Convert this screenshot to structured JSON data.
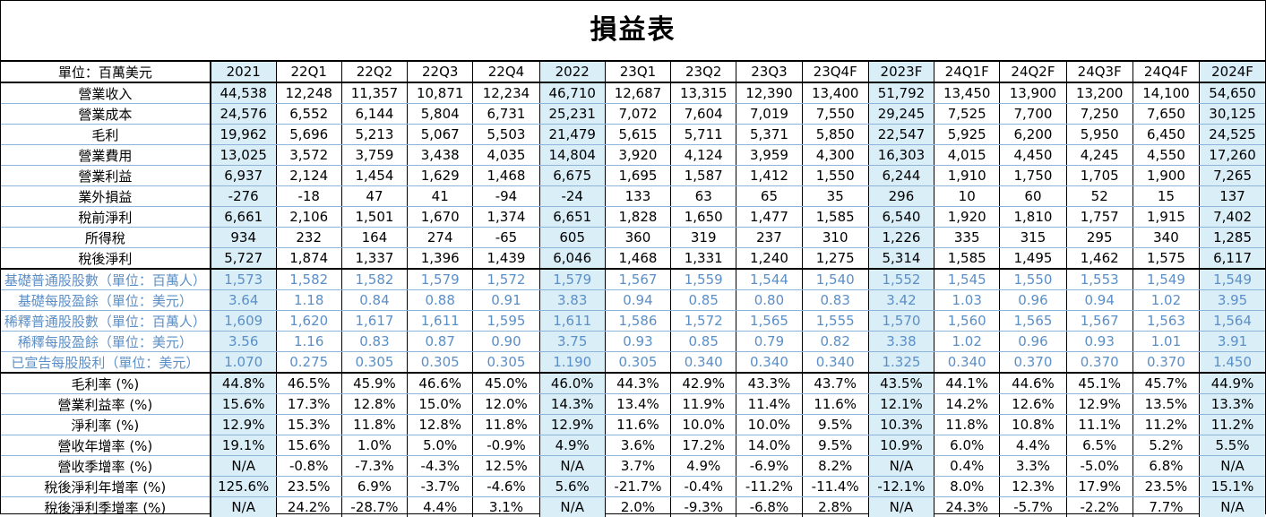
{
  "title": "損益表",
  "unit_label": "單位：百萬美元",
  "columns": [
    "2021",
    "22Q1",
    "22Q2",
    "22Q3",
    "22Q4",
    "2022",
    "23Q1",
    "23Q2",
    "23Q3",
    "23Q4F",
    "2023F",
    "24Q1F",
    "24Q2F",
    "24Q3F",
    "24Q4F",
    "2024F"
  ],
  "annual_columns": [
    0,
    5,
    10,
    15
  ],
  "rows": [
    {
      "label": "營業收入",
      "style": "normal",
      "values": [
        "44,538",
        "12,248",
        "11,357",
        "10,871",
        "12,234",
        "46,710",
        "12,687",
        "13,315",
        "12,390",
        "13,400",
        "51,792",
        "13,450",
        "13,900",
        "13,200",
        "14,100",
        "54,650"
      ]
    },
    {
      "label": "營業成本",
      "style": "normal",
      "values": [
        "24,576",
        "6,552",
        "6,144",
        "5,804",
        "6,731",
        "25,231",
        "7,072",
        "7,604",
        "7,019",
        "7,550",
        "29,245",
        "7,525",
        "7,700",
        "7,250",
        "7,650",
        "30,125"
      ]
    },
    {
      "label": "毛利",
      "style": "normal",
      "values": [
        "19,962",
        "5,696",
        "5,213",
        "5,067",
        "5,503",
        "21,479",
        "5,615",
        "5,711",
        "5,371",
        "5,850",
        "22,547",
        "5,925",
        "6,200",
        "5,950",
        "6,450",
        "24,525"
      ]
    },
    {
      "label": "營業費用",
      "style": "normal",
      "values": [
        "13,025",
        "3,572",
        "3,759",
        "3,438",
        "4,035",
        "14,804",
        "3,920",
        "4,124",
        "3,959",
        "4,300",
        "16,303",
        "4,015",
        "4,450",
        "4,245",
        "4,550",
        "17,260"
      ]
    },
    {
      "label": "營業利益",
      "style": "normal",
      "values": [
        "6,937",
        "2,124",
        "1,454",
        "1,629",
        "1,468",
        "6,675",
        "1,695",
        "1,587",
        "1,412",
        "1,550",
        "6,244",
        "1,910",
        "1,750",
        "1,705",
        "1,900",
        "7,265"
      ]
    },
    {
      "label": "業外損益",
      "style": "normal",
      "values": [
        "-276",
        "-18",
        "47",
        "41",
        "-94",
        "-24",
        "133",
        "63",
        "65",
        "35",
        "296",
        "10",
        "60",
        "52",
        "15",
        "137"
      ]
    },
    {
      "label": "稅前淨利",
      "style": "normal",
      "values": [
        "6,661",
        "2,106",
        "1,501",
        "1,670",
        "1,374",
        "6,651",
        "1,828",
        "1,650",
        "1,477",
        "1,585",
        "6,540",
        "1,920",
        "1,810",
        "1,757",
        "1,915",
        "7,402"
      ]
    },
    {
      "label": "所得稅",
      "style": "normal",
      "values": [
        "934",
        "232",
        "164",
        "274",
        "-65",
        "605",
        "360",
        "319",
        "237",
        "310",
        "1,226",
        "335",
        "315",
        "295",
        "340",
        "1,285"
      ]
    },
    {
      "label": "稅後淨利",
      "style": "normal",
      "values": [
        "5,727",
        "1,874",
        "1,337",
        "1,396",
        "1,439",
        "6,046",
        "1,468",
        "1,331",
        "1,240",
        "1,275",
        "5,314",
        "1,585",
        "1,495",
        "1,462",
        "1,575",
        "6,117"
      ]
    },
    {
      "label": "基礎普通股股數（單位：百萬人）",
      "style": "share",
      "values": [
        "1,573",
        "1,582",
        "1,582",
        "1,579",
        "1,572",
        "1,579",
        "1,567",
        "1,559",
        "1,544",
        "1,540",
        "1,552",
        "1,545",
        "1,550",
        "1,553",
        "1,549",
        "1,549"
      ]
    },
    {
      "label": "基礎每股盈餘（單位：美元）",
      "style": "share",
      "values": [
        "3.64",
        "1.18",
        "0.84",
        "0.88",
        "0.91",
        "3.83",
        "0.94",
        "0.85",
        "0.80",
        "0.83",
        "3.42",
        "1.03",
        "0.96",
        "0.94",
        "1.02",
        "3.95"
      ]
    },
    {
      "label": "稀釋普通股股數（單位：百萬人）",
      "style": "share",
      "values": [
        "1,609",
        "1,620",
        "1,617",
        "1,611",
        "1,595",
        "1,611",
        "1,586",
        "1,572",
        "1,565",
        "1,555",
        "1,570",
        "1,560",
        "1,565",
        "1,567",
        "1,563",
        "1,564"
      ]
    },
    {
      "label": "稀釋每股盈餘（單位：美元）",
      "style": "share",
      "values": [
        "3.56",
        "1.16",
        "0.83",
        "0.87",
        "0.90",
        "3.75",
        "0.93",
        "0.85",
        "0.79",
        "0.82",
        "3.38",
        "1.02",
        "0.96",
        "0.93",
        "1.01",
        "3.91"
      ]
    },
    {
      "label": "已宣告每股股利（單位：美元）",
      "style": "share",
      "values": [
        "1.070",
        "0.275",
        "0.305",
        "0.305",
        "0.305",
        "1.190",
        "0.305",
        "0.340",
        "0.340",
        "0.340",
        "1.325",
        "0.340",
        "0.370",
        "0.370",
        "0.370",
        "1.450"
      ]
    },
    {
      "label": "毛利率 (%)",
      "style": "normal",
      "values": [
        "44.8%",
        "46.5%",
        "45.9%",
        "46.6%",
        "45.0%",
        "46.0%",
        "44.3%",
        "42.9%",
        "43.3%",
        "43.7%",
        "43.5%",
        "44.1%",
        "44.6%",
        "45.1%",
        "45.7%",
        "44.9%"
      ]
    },
    {
      "label": "營業利益率 (%)",
      "style": "normal",
      "values": [
        "15.6%",
        "17.3%",
        "12.8%",
        "15.0%",
        "12.0%",
        "14.3%",
        "13.4%",
        "11.9%",
        "11.4%",
        "11.6%",
        "12.1%",
        "14.2%",
        "12.6%",
        "12.9%",
        "13.5%",
        "13.3%"
      ]
    },
    {
      "label": "淨利率 (%)",
      "style": "normal",
      "values": [
        "12.9%",
        "15.3%",
        "11.8%",
        "12.8%",
        "11.8%",
        "12.9%",
        "11.6%",
        "10.0%",
        "10.0%",
        "9.5%",
        "10.3%",
        "11.8%",
        "10.8%",
        "11.1%",
        "11.2%",
        "11.2%"
      ]
    },
    {
      "label": "營收年增率 (%)",
      "style": "normal",
      "values": [
        "19.1%",
        "15.6%",
        "1.0%",
        "5.0%",
        "-0.9%",
        "4.9%",
        "3.6%",
        "17.2%",
        "14.0%",
        "9.5%",
        "10.9%",
        "6.0%",
        "4.4%",
        "6.5%",
        "5.2%",
        "5.5%"
      ]
    },
    {
      "label": "營收季增率 (%)",
      "style": "normal",
      "values": [
        "N/A",
        "-0.8%",
        "-7.3%",
        "-4.3%",
        "12.5%",
        "N/A",
        "3.7%",
        "4.9%",
        "-6.9%",
        "8.2%",
        "N/A",
        "0.4%",
        "3.3%",
        "-5.0%",
        "6.8%",
        "N/A"
      ]
    },
    {
      "label": "稅後淨利年增率 (%)",
      "style": "normal",
      "values": [
        "125.6%",
        "23.5%",
        "6.9%",
        "-3.7%",
        "-4.6%",
        "5.6%",
        "-21.7%",
        "-0.4%",
        "-11.2%",
        "-11.4%",
        "-12.1%",
        "8.0%",
        "12.3%",
        "17.9%",
        "23.5%",
        "15.1%"
      ]
    },
    {
      "label": "稅後淨利季增率 (%)",
      "style": "normal",
      "values": [
        "N/A",
        "24.2%",
        "-28.7%",
        "4.4%",
        "3.1%",
        "N/A",
        "2.0%",
        "-9.3%",
        "-6.8%",
        "2.8%",
        "N/A",
        "24.3%",
        "-5.7%",
        "-2.2%",
        "7.7%",
        "N/A"
      ]
    }
  ]
}
